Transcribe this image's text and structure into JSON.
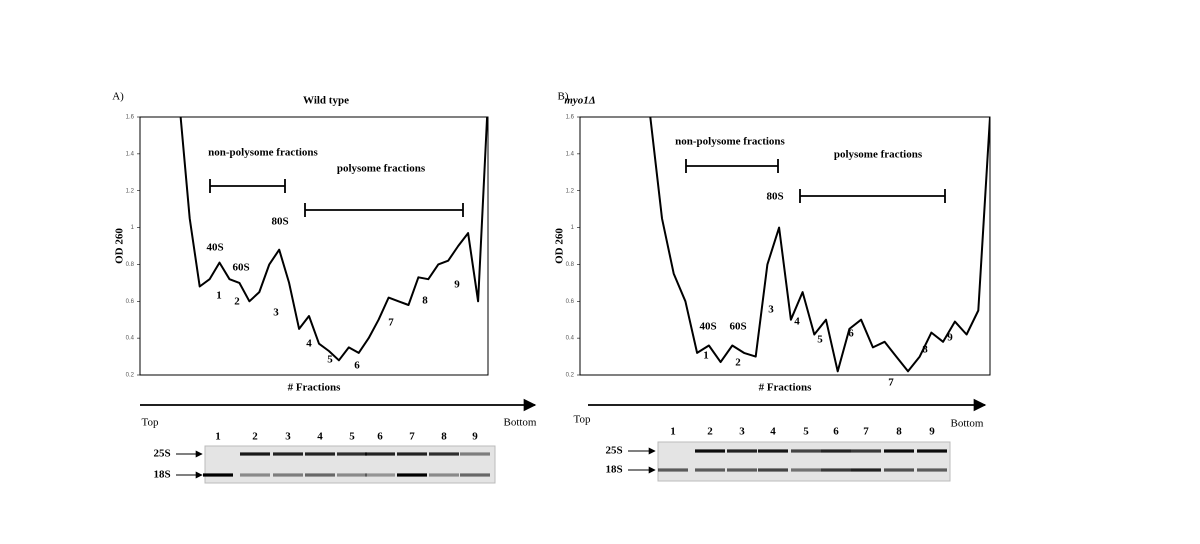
{
  "chart_data": [
    {
      "type": "line",
      "panel_label": "A)",
      "title": "Wild type",
      "y_label": "OD 260",
      "x_label": "# Fractions",
      "ylim": [
        0.2,
        1.6
      ],
      "yticks": [
        0.2,
        0.4,
        0.6,
        0.8,
        1,
        1.2,
        1.4,
        1.6
      ],
      "color": "#000000",
      "values": [
        null,
        null,
        null,
        null,
        1.65,
        1.05,
        0.68,
        0.72,
        0.81,
        0.72,
        0.7,
        0.6,
        0.65,
        0.8,
        0.88,
        0.7,
        0.45,
        0.52,
        0.37,
        0.33,
        0.28,
        0.35,
        0.32,
        0.4,
        0.5,
        0.62,
        0.6,
        0.58,
        0.73,
        0.72,
        0.8,
        0.82,
        0.9,
        0.97,
        0.6,
        1.7
      ],
      "annotations": [
        "non-polysome fractions",
        "polysome fractions",
        "80S",
        "40S",
        "60S",
        "1",
        "2",
        "3",
        "4",
        "5",
        "6",
        "7",
        "8",
        "9"
      ],
      "direction_labels": [
        "Top",
        "Bottom"
      ],
      "gel": {
        "lanes": [
          "1",
          "2",
          "3",
          "4",
          "5",
          "6",
          "7",
          "8",
          "9"
        ],
        "bands": [
          "25S",
          "18S"
        ]
      }
    },
    {
      "type": "line",
      "panel_label": "B)",
      "title": "myo1Δ",
      "y_label": "OD 260",
      "x_label": "# Fractions",
      "ylim": [
        0.2,
        1.6
      ],
      "yticks": [
        0.2,
        0.4,
        0.6,
        0.8,
        1,
        1.2,
        1.4,
        1.6
      ],
      "color": "#000000",
      "values": [
        null,
        null,
        null,
        null,
        null,
        null,
        1.6,
        1.05,
        0.75,
        0.6,
        0.32,
        0.36,
        0.27,
        0.36,
        0.32,
        0.3,
        0.8,
        1.0,
        0.5,
        0.65,
        0.42,
        0.5,
        0.22,
        0.45,
        0.5,
        0.35,
        0.38,
        0.3,
        0.22,
        0.3,
        0.43,
        0.38,
        0.49,
        0.42,
        0.55,
        1.6
      ],
      "annotations": [
        "non-polysome fractions",
        "polysome fractions",
        "80S",
        "40S",
        "60S",
        "1",
        "2",
        "3",
        "4",
        "5",
        "6",
        "7",
        "8",
        "9"
      ],
      "direction_labels": [
        "Top",
        "Bottom"
      ],
      "gel": {
        "lanes": [
          "1",
          "2",
          "3",
          "4",
          "5",
          "6",
          "7",
          "8",
          "9"
        ],
        "bands": [
          "25S",
          "18S"
        ]
      }
    }
  ]
}
